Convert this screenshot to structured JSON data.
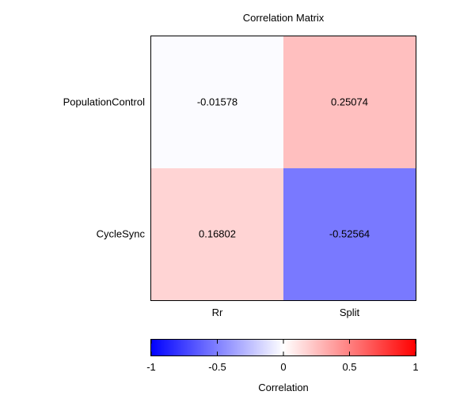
{
  "chart_data": {
    "type": "heatmap",
    "title": "Correlation Matrix",
    "rows": [
      "PopulationControl",
      "CycleSync"
    ],
    "columns": [
      "Rr",
      "Split"
    ],
    "values": [
      [
        -0.01578,
        0.25074
      ],
      [
        0.16802,
        -0.52564
      ]
    ],
    "value_labels": [
      [
        "-0.01578",
        "0.25074"
      ],
      [
        "0.16802",
        "-0.52564"
      ]
    ],
    "colorbar": {
      "label": "Correlation",
      "range": [
        -1,
        1
      ],
      "ticks": [
        -1,
        -0.5,
        0,
        0.5,
        1
      ],
      "tick_labels": [
        "-1",
        "-0.5",
        "0",
        "0.5",
        "1"
      ],
      "colormap": "bwr",
      "low_color": "#0000ff",
      "mid_color": "#ffffff",
      "high_color": "#ff0000"
    },
    "grid": false
  }
}
